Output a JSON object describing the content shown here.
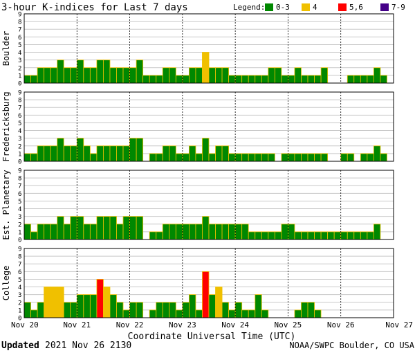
{
  "chart_data": {
    "type": "bar",
    "title": "3-hour K-indices for Last 7 days",
    "legend": {
      "label": "Legend:",
      "placement": "top-right",
      "items": [
        {
          "label": "0-3",
          "color": "#008800"
        },
        {
          "label": "4",
          "color": "#f0c000"
        },
        {
          "label": "5,6",
          "color": "#ff0000"
        },
        {
          "label": "7-9",
          "color": "#440088"
        }
      ]
    },
    "xlabel": "Coordinate Universal Time (UTC)",
    "x_ticks": [
      "Nov 20",
      "Nov 21",
      "Nov 22",
      "Nov 23",
      "Nov 24",
      "Nov 25",
      "Nov 26",
      "Nov 27"
    ],
    "y_ticks": [
      "0",
      "1",
      "2",
      "3",
      "4",
      "5",
      "6",
      "7",
      "8",
      "9"
    ],
    "ylim": [
      0,
      9
    ],
    "grid": true,
    "bar_outline_color": "#f0c000",
    "series": [
      {
        "name": "Boulder",
        "values": [
          1,
          1,
          2,
          2,
          2,
          3,
          2,
          2,
          3,
          2,
          2,
          3,
          3,
          2,
          2,
          2,
          2,
          3,
          1,
          1,
          1,
          2,
          2,
          1,
          1,
          2,
          2,
          4,
          2,
          2,
          2,
          1,
          1,
          1,
          1,
          1,
          1,
          2,
          2,
          1,
          1,
          2,
          1,
          1,
          1,
          2,
          0,
          0,
          0,
          1,
          1,
          1,
          1,
          2,
          1,
          0
        ]
      },
      {
        "name": "Fredericksburg",
        "values": [
          1,
          1,
          2,
          2,
          2,
          3,
          2,
          2,
          3,
          2,
          1,
          2,
          2,
          2,
          2,
          2,
          3,
          3,
          0,
          1,
          1,
          2,
          2,
          1,
          1,
          2,
          1,
          3,
          1,
          2,
          2,
          1,
          1,
          1,
          1,
          1,
          1,
          1,
          0,
          1,
          1,
          1,
          1,
          1,
          1,
          1,
          0,
          0,
          1,
          1,
          0,
          1,
          1,
          2,
          1,
          0
        ]
      },
      {
        "name": "Est. Planetary",
        "values": [
          2,
          1,
          2,
          2,
          2,
          3,
          2,
          3,
          3,
          2,
          2,
          3,
          3,
          3,
          2,
          3,
          3,
          3,
          0,
          1,
          1,
          2,
          2,
          2,
          2,
          2,
          2,
          3,
          2,
          2,
          2,
          2,
          2,
          2,
          1,
          1,
          1,
          1,
          1,
          2,
          2,
          1,
          1,
          1,
          1,
          1,
          1,
          1,
          1,
          1,
          1,
          1,
          1,
          2,
          0,
          0
        ]
      },
      {
        "name": "College",
        "values": [
          2,
          1,
          2,
          4,
          4,
          4,
          2,
          2,
          3,
          3,
          3,
          5,
          4,
          3,
          2,
          1,
          2,
          2,
          0,
          1,
          2,
          2,
          2,
          1,
          2,
          3,
          1,
          6,
          3,
          4,
          2,
          1,
          2,
          1,
          1,
          3,
          1,
          0,
          0,
          0,
          0,
          1,
          2,
          2,
          1,
          0,
          0,
          0,
          0,
          0,
          0,
          0,
          0,
          0,
          0,
          0
        ]
      }
    ]
  },
  "footer": {
    "updated_label": "Updated",
    "updated_value": "2021 Nov 26 2130",
    "source": "NOAA/SWPC Boulder, CO USA"
  }
}
